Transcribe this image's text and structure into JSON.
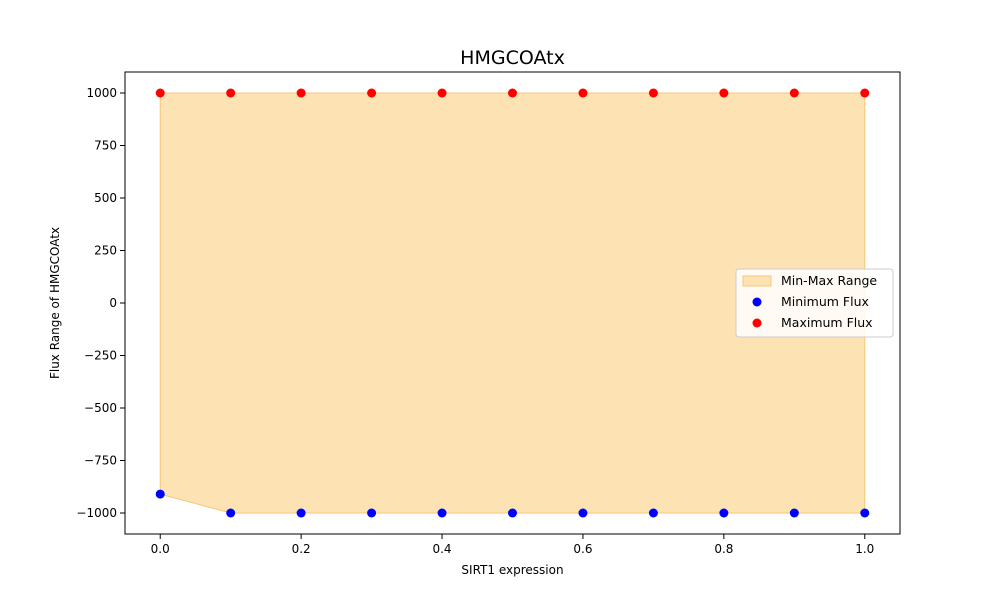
{
  "chart_data": {
    "type": "scatter",
    "title": "HMGCOAtx",
    "xlabel": "SIRT1 expression",
    "ylabel": "Flux Range of HMGCOAtx",
    "xlim": [
      -0.05,
      1.05
    ],
    "ylim": [
      -1100,
      1100
    ],
    "xticks": [
      0.0,
      0.2,
      0.4,
      0.6,
      0.8,
      1.0
    ],
    "xtick_labels": [
      "0.0",
      "0.2",
      "0.4",
      "0.6",
      "0.8",
      "1.0"
    ],
    "yticks": [
      -1000,
      -750,
      -500,
      -250,
      0,
      250,
      500,
      750,
      1000
    ],
    "ytick_labels": [
      "−1000",
      "−750",
      "−500",
      "−250",
      "0",
      "250",
      "500",
      "750",
      "1000"
    ],
    "x": [
      0.0,
      0.1,
      0.2,
      0.3,
      0.4,
      0.5,
      0.6,
      0.7,
      0.8,
      0.9,
      1.0
    ],
    "fill_label": "Min-Max Range",
    "fill_color": "#fde3b3",
    "fill_edge_color": "#f6c778",
    "series": [
      {
        "name": "Minimum Flux",
        "color": "#0000ff",
        "values": [
          -910,
          -1000,
          -1000,
          -1000,
          -1000,
          -1000,
          -1000,
          -1000,
          -1000,
          -1000,
          -1000
        ]
      },
      {
        "name": "Maximum Flux",
        "color": "#ff0000",
        "values": [
          1000,
          1000,
          1000,
          1000,
          1000,
          1000,
          1000,
          1000,
          1000,
          1000,
          1000
        ]
      }
    ],
    "legend_position": "center-right",
    "grid": false
  }
}
